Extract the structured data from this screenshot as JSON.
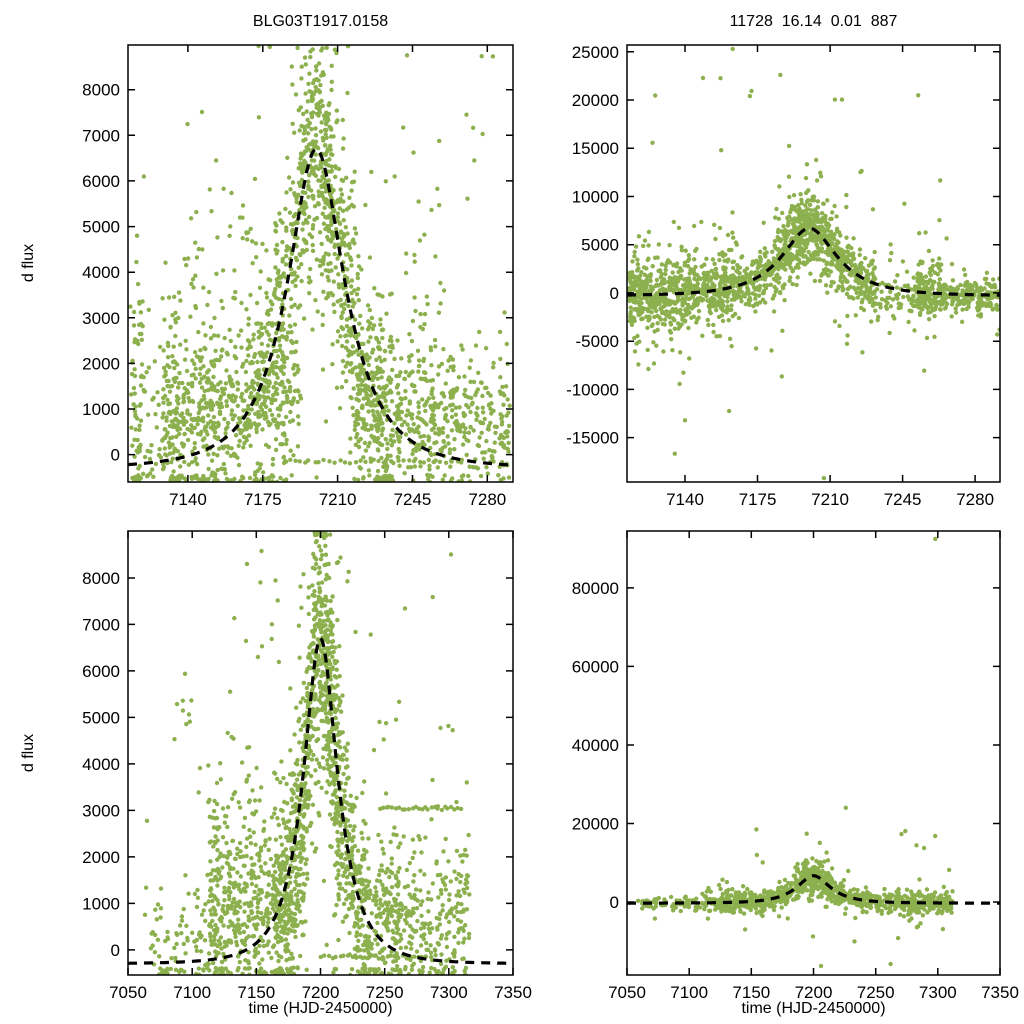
{
  "labels": {
    "ylabel": "d flux",
    "xlabel": "time (HJD-2450000)"
  },
  "style": {
    "background": "#ffffff",
    "point_color": "#8db04e",
    "curve_color": "#000000"
  },
  "chart_data": [
    {
      "type": "scatter",
      "panel": "top-left",
      "title": "BLG03T1917.0158",
      "xlabel": "",
      "ylabel": "d flux",
      "xlim": [
        7112,
        7292
      ],
      "ylim": [
        -600,
        8980
      ],
      "x_ticks": [
        7140,
        7175,
        7210,
        7245,
        7280
      ],
      "y_ticks": [
        0,
        1000,
        2000,
        3000,
        4000,
        5000,
        6000,
        7000,
        8000
      ],
      "seed": 11,
      "model": {
        "shape": "paczynski",
        "t0": 7200,
        "tE": 28,
        "u0": 0.5,
        "base": -300,
        "scale": 5917,
        "peak_flux": 6700
      },
      "scatter": [
        {
          "mode": "flat",
          "t0": 7113,
          "t1": 7119,
          "n": 45,
          "c": 1400,
          "s": 1500
        },
        {
          "mode": "flat",
          "t0": 7115,
          "t1": 7134,
          "n": 90,
          "c": 500,
          "s": 800
        },
        {
          "mode": "flat",
          "t0": 7128,
          "t1": 7172,
          "n": 430,
          "c": 800,
          "s": 850
        },
        {
          "mode": "flat",
          "t0": 7128,
          "t1": 7172,
          "n": 110,
          "c": 2700,
          "s": 1500
        },
        {
          "mode": "follow",
          "t0": 7172,
          "t1": 7192,
          "n": 260,
          "s": 1250
        },
        {
          "mode": "flat",
          "t0": 7172,
          "t1": 7192,
          "n": 130,
          "c": 1200,
          "s": 900
        },
        {
          "mode": "follow",
          "t0": 7192,
          "t1": 7218,
          "n": 520,
          "s": 1300
        },
        {
          "mode": "follow",
          "t0": 7218,
          "t1": 7236,
          "n": 200,
          "s": 1050
        },
        {
          "mode": "flat",
          "t0": 7218,
          "t1": 7240,
          "n": 130,
          "c": 900,
          "s": 800
        },
        {
          "mode": "flat",
          "t0": 7238,
          "t1": 7268,
          "n": 230,
          "c": 800,
          "s": 800
        },
        {
          "mode": "flat",
          "t0": 7242,
          "t1": 7262,
          "n": 35,
          "c": 3100,
          "s": 1500
        },
        {
          "mode": "flat",
          "t0": 7268,
          "t1": 7291,
          "n": 150,
          "c": 700,
          "s": 700
        },
        {
          "mode": "uniform",
          "t0": 7130,
          "t1": 7290,
          "n": 40,
          "y0": 1500,
          "y1": 8800
        },
        {
          "mode": "row",
          "t0": 7185,
          "t1": 7265,
          "n": 34,
          "c": -150
        }
      ],
      "extras": []
    },
    {
      "type": "scatter",
      "panel": "top-right",
      "title": "11728  16.14  0.01  887",
      "xlabel": "",
      "ylabel": "",
      "xlim": [
        7112,
        7292
      ],
      "ylim": [
        -19600,
        25700
      ],
      "x_ticks": [
        7140,
        7175,
        7210,
        7245,
        7280
      ],
      "y_ticks": [
        -15000,
        -10000,
        -5000,
        0,
        5000,
        10000,
        15000,
        20000,
        25000
      ],
      "seed": 22,
      "model": {
        "shape": "paczynski",
        "t0": 7200,
        "tE": 28,
        "u0": 0.5,
        "base": -300,
        "scale": 5917,
        "peak_flux": 6700
      },
      "scatter": [
        {
          "mode": "follow",
          "t0": 7113,
          "t1": 7232,
          "n": 1150,
          "s": 1350
        },
        {
          "mode": "follow",
          "t0": 7113,
          "t1": 7165,
          "n": 220,
          "s": 3300
        },
        {
          "mode": "follow",
          "t0": 7185,
          "t1": 7215,
          "n": 230,
          "s": 2400
        },
        {
          "mode": "flat",
          "t0": 7232,
          "t1": 7250,
          "n": 55,
          "c": -300,
          "s": 1100
        },
        {
          "mode": "flat",
          "t0": 7250,
          "t1": 7292,
          "n": 300,
          "c": -400,
          "s": 950
        },
        {
          "mode": "flat",
          "t0": 7252,
          "t1": 7264,
          "n": 70,
          "c": 800,
          "s": 2300
        },
        {
          "mode": "uniform",
          "t0": 7125,
          "t1": 7270,
          "n": 30,
          "y0": -12000,
          "y1": 23000
        }
      ],
      "extras": [
        [
          7163,
          25300
        ],
        [
          7186,
          22600
        ],
        [
          7207,
          -19200
        ],
        [
          7140,
          -13200
        ]
      ]
    },
    {
      "type": "scatter",
      "panel": "bottom-left",
      "title": "",
      "xlabel": "time (HJD-2450000)",
      "ylabel": "d flux",
      "xlim": [
        7050,
        7350
      ],
      "ylim": [
        -540,
        9010
      ],
      "x_ticks": [
        7050,
        7100,
        7150,
        7200,
        7250,
        7300,
        7350
      ],
      "y_ticks": [
        0,
        1000,
        2000,
        3000,
        4000,
        5000,
        6000,
        7000,
        8000
      ],
      "seed": 33,
      "model": {
        "shape": "paczynski",
        "t0": 7200,
        "tE": 28,
        "u0": 0.5,
        "base": -300,
        "scale": 5917,
        "peak_flux": 6700
      },
      "scatter": [
        {
          "mode": "flat",
          "t0": 7063,
          "t1": 7112,
          "n": 85,
          "c": 300,
          "s": 600
        },
        {
          "mode": "flat",
          "t0": 7112,
          "t1": 7165,
          "n": 360,
          "c": 800,
          "s": 900
        },
        {
          "mode": "flat",
          "t0": 7112,
          "t1": 7165,
          "n": 75,
          "c": 2700,
          "s": 1400
        },
        {
          "mode": "flat",
          "t0": 7085,
          "t1": 7102,
          "n": 9,
          "c": 4600,
          "s": 700
        },
        {
          "mode": "follow",
          "t0": 7165,
          "t1": 7190,
          "n": 320,
          "s": 1200
        },
        {
          "mode": "flat",
          "t0": 7165,
          "t1": 7190,
          "n": 110,
          "c": 1000,
          "s": 800
        },
        {
          "mode": "follow",
          "t0": 7190,
          "t1": 7216,
          "n": 520,
          "s": 1300
        },
        {
          "mode": "follow",
          "t0": 7216,
          "t1": 7236,
          "n": 230,
          "s": 1000
        },
        {
          "mode": "flat",
          "t0": 7236,
          "t1": 7262,
          "n": 190,
          "c": 700,
          "s": 800
        },
        {
          "mode": "flat",
          "t0": 7262,
          "t1": 7316,
          "n": 240,
          "c": 600,
          "s": 700
        },
        {
          "mode": "row",
          "t0": 7246,
          "t1": 7312,
          "n": 26,
          "c": 3050
        },
        {
          "mode": "row",
          "t0": 7200,
          "t1": 7292,
          "n": 30,
          "c": -150
        },
        {
          "mode": "uniform",
          "t0": 7130,
          "t1": 7312,
          "n": 38,
          "y0": 1500,
          "y1": 8800
        }
      ],
      "extras": []
    },
    {
      "type": "scatter",
      "panel": "bottom-right",
      "title": "",
      "xlabel": "time (HJD-2450000)",
      "ylabel": "",
      "xlim": [
        7050,
        7350
      ],
      "ylim": [
        -18600,
        94500
      ],
      "x_ticks": [
        7050,
        7100,
        7150,
        7200,
        7250,
        7300,
        7350
      ],
      "y_ticks": [
        0,
        20000,
        40000,
        60000,
        80000
      ],
      "seed": 44,
      "model": {
        "shape": "paczynski",
        "t0": 7200,
        "tE": 28,
        "u0": 0.5,
        "base": -300,
        "scale": 5917,
        "peak_flux": 6700
      },
      "scatter": [
        {
          "mode": "follow",
          "t0": 7112,
          "t1": 7312,
          "n": 880,
          "s": 1300
        },
        {
          "mode": "follow",
          "t0": 7185,
          "t1": 7215,
          "n": 170,
          "s": 2700
        },
        {
          "mode": "flat",
          "t0": 7058,
          "t1": 7112,
          "n": 65,
          "c": -400,
          "s": 900
        },
        {
          "mode": "uniform",
          "t0": 7150,
          "t1": 7310,
          "n": 20,
          "y0": -14000,
          "y1": 20000
        }
      ],
      "extras": [
        [
          7298,
          92500
        ],
        [
          7262,
          -15800
        ],
        [
          7206,
          -16300
        ],
        [
          7226,
          24000
        ]
      ]
    }
  ]
}
